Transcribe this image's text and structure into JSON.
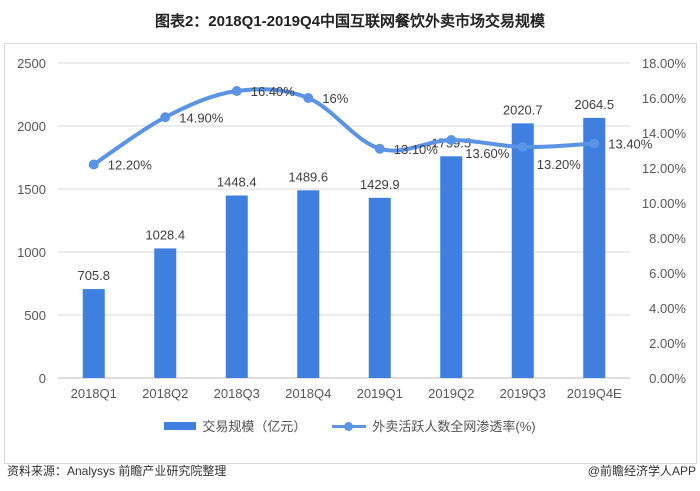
{
  "title": "图表2：2018Q1-2019Q4中国互联网餐饮外卖市场交易规模",
  "source": "资料来源：Analysys 前瞻产业研究院整理",
  "credit": "@前瞻经济学人APP",
  "chart_data": {
    "type": "bar+line",
    "categories": [
      "2018Q1",
      "2018Q2",
      "2018Q3",
      "2018Q4",
      "2019Q1",
      "2019Q2",
      "2019Q3",
      "2019Q4E"
    ],
    "series": [
      {
        "name": "交易规模（亿元）",
        "type": "bar",
        "axis": "left",
        "color": "#3f7fdf",
        "values": [
          705.8,
          1028.4,
          1448.4,
          1489.6,
          1429.9,
          1759.5,
          2020.7,
          2064.5
        ],
        "labels": [
          "705.8",
          "1028.4",
          "1448.4",
          "1489.6",
          "1429.9",
          "1759.5",
          "2020.7",
          "2064.5"
        ]
      },
      {
        "name": "外卖活跃人数全网渗透率(%)",
        "type": "line",
        "axis": "right",
        "color": "#5b93e6",
        "smooth": true,
        "values": [
          12.2,
          14.9,
          16.4,
          16.0,
          13.1,
          13.6,
          13.2,
          13.4
        ],
        "labels": [
          "12.20%",
          "14.90%",
          "16.40%",
          "16%",
          "13.10%",
          "13.60%",
          "13.20%",
          "13.40%"
        ]
      }
    ],
    "y_left": {
      "range": [
        0,
        2500
      ],
      "ticks": [
        "0",
        "500",
        "1000",
        "1500",
        "2000",
        "2500"
      ]
    },
    "y_right": {
      "range": [
        0,
        18
      ],
      "ticks": [
        "0.00%",
        "2.00%",
        "4.00%",
        "6.00%",
        "8.00%",
        "10.00%",
        "12.00%",
        "14.00%",
        "16.00%",
        "18.00%"
      ]
    },
    "grid": true,
    "legend": "bottom"
  }
}
